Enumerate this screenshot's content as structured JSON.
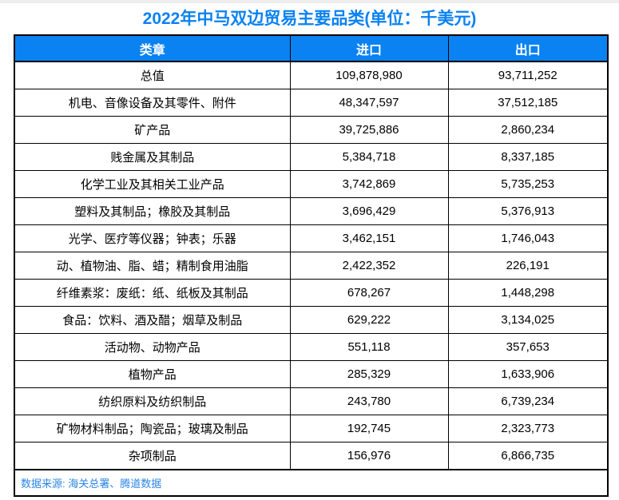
{
  "page": {
    "title": "2022年中马双边贸易主要品类(单位：千美元)",
    "source_note": "数据来源: 海关总署、腾道数据"
  },
  "colors": {
    "accent_blue": "#0A82F1",
    "header_text_white": "#FFFFFF",
    "border_black": "#000000",
    "source_text_blue": "#2B85E4",
    "top_strip_gray": "#EDEDED"
  },
  "chart_data": {
    "type": "table",
    "title": "2022年中马双边贸易主要品类(单位：千美元)",
    "columns": [
      "类章",
      "进口",
      "出口"
    ],
    "rows": [
      [
        "总值",
        "109,878,980",
        "93,711,252"
      ],
      [
        "机电、音像设备及其零件、附件",
        "48,347,597",
        "37,512,185"
      ],
      [
        "矿产品",
        "39,725,886",
        "2,860,234"
      ],
      [
        "贱金属及其制品",
        "5,384,718",
        "8,337,185"
      ],
      [
        "化学工业及其相关工业产品",
        "3,742,869",
        "5,735,253"
      ],
      [
        "塑料及其制品；橡胶及其制品",
        "3,696,429",
        "5,376,913"
      ],
      [
        "光学、医疗等仪器；钟表；乐器",
        "3,462,151",
        "1,746,043"
      ],
      [
        "动、植物油、脂、蜡；精制食用油脂",
        "2,422,352",
        "226,191"
      ],
      [
        "纤维素浆：废纸：纸、纸板及其制品",
        "678,267",
        "1,448,298"
      ],
      [
        "食品：饮料、酒及醋；烟草及制品",
        "629,222",
        "3,134,025"
      ],
      [
        "活动物、动物产品",
        "551,118",
        "357,653"
      ],
      [
        "植物产品",
        "285,329",
        "1,633,906"
      ],
      [
        "纺织原料及纺织制品",
        "243,780",
        "6,739,234"
      ],
      [
        "矿物材料制品；陶瓷品；玻璃及制品",
        "192,745",
        "2,323,773"
      ],
      [
        "杂项制品",
        "156,976",
        "6,866,735"
      ]
    ],
    "source": "数据来源: 海关总署、腾道数据",
    "layout": {
      "header_bg": "#0A82F1",
      "grid": true,
      "value_alignment": "center"
    }
  }
}
